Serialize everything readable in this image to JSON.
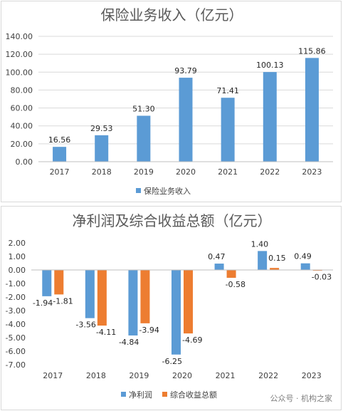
{
  "charts": [
    {
      "type": "bar",
      "title": "保险业务收入（亿元）",
      "categories": [
        "2017",
        "2018",
        "2019",
        "2020",
        "2021",
        "2022",
        "2023"
      ],
      "series": [
        {
          "name": "保险业务收入",
          "values": [
            16.56,
            29.53,
            51.3,
            93.79,
            71.41,
            100.13,
            115.86
          ],
          "labels": [
            "16.56",
            "29.53",
            "51.30",
            "93.79",
            "71.41",
            "100.13",
            "115.86"
          ],
          "color": "#5b9bd5"
        }
      ],
      "ylim": [
        0,
        140
      ],
      "yticks": [
        0,
        20,
        40,
        60,
        80,
        100,
        120,
        140
      ],
      "ytick_labels": [
        "0.00",
        "20.00",
        "40.00",
        "60.00",
        "80.00",
        "100.00",
        "120.00",
        "140.00"
      ],
      "grid": true,
      "legend": "bottom"
    },
    {
      "type": "bar",
      "title": "净利润及综合收益总额（亿元）",
      "categories": [
        "2017",
        "2018",
        "2019",
        "2020",
        "2021",
        "2022",
        "2023"
      ],
      "series": [
        {
          "name": "净利润",
          "values": [
            -1.94,
            -3.56,
            -4.84,
            -6.25,
            0.47,
            1.4,
            0.49
          ],
          "labels": [
            "-1.94",
            "-3.56",
            "-4.84",
            "-6.25",
            "0.47",
            "1.40",
            "0.49"
          ],
          "color": "#5b9bd5"
        },
        {
          "name": "综合收益总额",
          "values": [
            -1.81,
            -4.11,
            -3.94,
            -4.69,
            -0.58,
            0.15,
            -0.03
          ],
          "labels": [
            "-1.81",
            "-4.11",
            "-3.94",
            "-4.69",
            "-0.58",
            "0.15",
            "-0.03"
          ],
          "color": "#ed7d31"
        }
      ],
      "ylim": [
        -7,
        2
      ],
      "yticks": [
        2,
        1,
        0,
        -1,
        -2,
        -3,
        -4,
        -5,
        -6,
        -7
      ],
      "ytick_labels": [
        "2.00",
        "1.00",
        "0.00",
        "-1.00",
        "-2.00",
        "-3.00",
        "-4.00",
        "-5.00",
        "-6.00",
        "-7.00"
      ],
      "grid": false,
      "legend": "bottom"
    }
  ],
  "watermark": "公众号 · 机构之家"
}
